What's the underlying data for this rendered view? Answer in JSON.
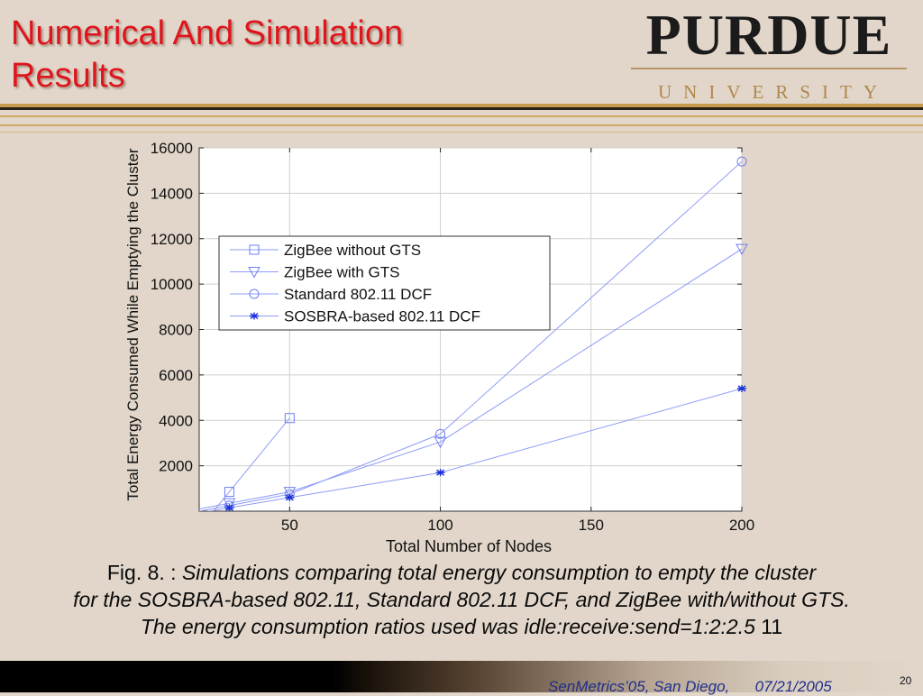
{
  "slide": {
    "title_line1": "Numerical And Simulation",
    "title_line2": "Results",
    "logo_word": "PURDUE",
    "logo_sub": "UNIVERSITY",
    "footer_text": "SenMetrics’05, San Diego,      07/21/2005",
    "page_number": "20"
  },
  "caption": {
    "line1_prefix": "Fig. 8. : ",
    "line1_italic": "Simulations comparing total energy consumption to empty the cluster",
    "line2_italic": "for the SOSBRA-based 802.11, Standard 802.11 DCF, and ZigBee with/without GTS.",
    "line3_italic": "The energy consumption ratios used was idle:receive:send=1:2:2.5",
    "line3_suffix": " 11"
  },
  "colors": {
    "title": "#e0141d",
    "background": "#e1d6c9",
    "series_line": "#8e9cf6",
    "marker": "#6f7ff0",
    "sosbra_marker": "#1a2fd8",
    "footer_text": "#1e2f8c",
    "divider_gold": "#c89b4c"
  },
  "chart_data": {
    "type": "line",
    "xlabel": "Total Number of Nodes",
    "ylabel": "Total Energy Consumed While Emptying the Cluster",
    "xlim": [
      20,
      200
    ],
    "ylim": [
      0,
      16000
    ],
    "xticks": [
      50,
      100,
      150,
      200
    ],
    "yticks": [
      2000,
      4000,
      6000,
      8000,
      10000,
      12000,
      14000,
      16000
    ],
    "grid": true,
    "legend_position": "upper-left",
    "series": [
      {
        "name": "ZigBee without GTS",
        "marker": "square",
        "x": [
          30,
          50
        ],
        "y": [
          850,
          4100
        ]
      },
      {
        "name": "ZigBee with GTS",
        "marker": "triangle-down",
        "x": [
          30,
          50,
          100,
          200
        ],
        "y": [
          350,
          850,
          3050,
          11550
        ]
      },
      {
        "name": "Standard 802.11 DCF",
        "marker": "circle",
        "x": [
          30,
          50,
          100,
          200
        ],
        "y": [
          250,
          750,
          3400,
          15400
        ]
      },
      {
        "name": "SOSBRA-based 802.11 DCF",
        "marker": "star",
        "x": [
          30,
          50,
          100,
          200
        ],
        "y": [
          150,
          600,
          1700,
          5400
        ]
      }
    ]
  }
}
